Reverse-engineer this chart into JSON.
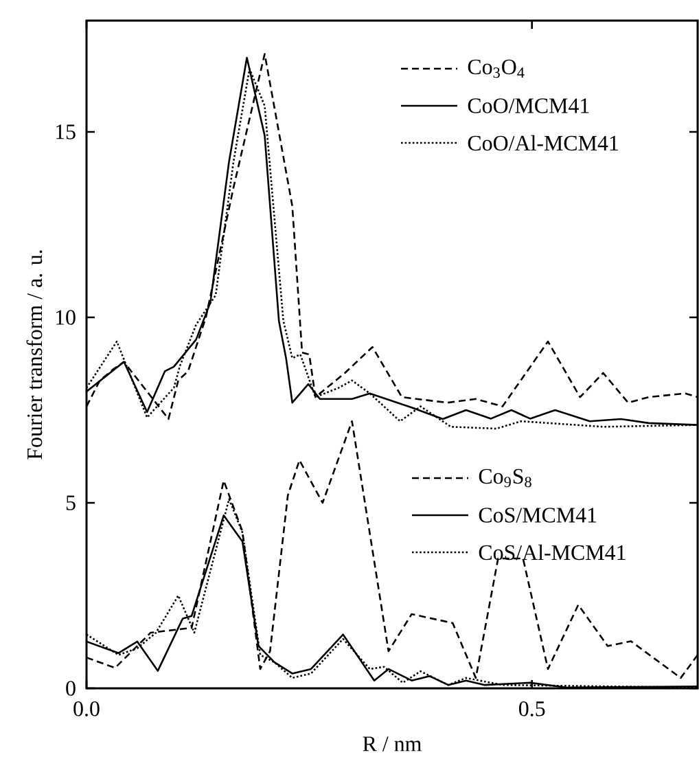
{
  "chart_data": {
    "type": "line",
    "xlabel": "R / nm",
    "ylabel": "Fourier transform / a. u.",
    "xlim": [
      0,
      0.686
    ],
    "ylim": [
      0,
      18
    ],
    "xticks": [
      {
        "value": 0,
        "label": "0.0"
      },
      {
        "value": 0.5,
        "label": "0.5"
      }
    ],
    "yticks": [
      0,
      5,
      10,
      15
    ],
    "legend": "right",
    "marker": "none",
    "series": [
      {
        "name": "Co$_{3}$O$_{4}$",
        "color": "#000000",
        "line_style": "dashed",
        "x": [
          0,
          0.015,
          0.03,
          0.042,
          0.092,
          0.103,
          0.114,
          0.134,
          0.165,
          0.2,
          0.231,
          0.242,
          0.25,
          0.257,
          0.29,
          0.321,
          0.354,
          0.405,
          0.437,
          0.467,
          0.518,
          0.554,
          0.58,
          0.608,
          0.631,
          0.672,
          0.686
        ],
        "values": [
          7.6,
          8.3,
          8.6,
          8.8,
          7.26,
          8.3,
          8.55,
          10.0,
          13.5,
          17.1,
          13.0,
          9.05,
          9.0,
          7.85,
          8.5,
          9.2,
          7.85,
          7.7,
          7.8,
          7.6,
          9.35,
          7.85,
          8.5,
          7.7,
          7.85,
          7.95,
          7.85
        ]
      },
      {
        "name": "CoO/MCM41",
        "color": "#000000",
        "line_style": "solid",
        "x": [
          0,
          0.042,
          0.068,
          0.088,
          0.098,
          0.123,
          0.139,
          0.16,
          0.18,
          0.2,
          0.216,
          0.224,
          0.231,
          0.249,
          0.262,
          0.298,
          0.318,
          0.365,
          0.4,
          0.426,
          0.454,
          0.477,
          0.498,
          0.526,
          0.565,
          0.6,
          0.631,
          0.686
        ],
        "values": [
          8.0,
          8.8,
          7.45,
          8.55,
          8.67,
          9.4,
          10.4,
          14.2,
          17.0,
          14.9,
          9.9,
          8.9,
          7.7,
          8.2,
          7.8,
          7.8,
          7.95,
          7.57,
          7.26,
          7.5,
          7.27,
          7.5,
          7.27,
          7.5,
          7.2,
          7.26,
          7.15,
          7.1
        ]
      },
      {
        "name": "CoO/Al-MCM41",
        "color": "#000000",
        "line_style": "dotted",
        "x": [
          0,
          0.034,
          0.068,
          0.098,
          0.105,
          0.123,
          0.145,
          0.165,
          0.183,
          0.2,
          0.221,
          0.231,
          0.24,
          0.257,
          0.283,
          0.298,
          0.318,
          0.352,
          0.375,
          0.409,
          0.46,
          0.488,
          0.58,
          0.686
        ],
        "values": [
          8.1,
          9.35,
          7.3,
          8.1,
          8.7,
          9.8,
          10.6,
          14.2,
          16.7,
          15.7,
          9.9,
          8.9,
          9.0,
          7.85,
          8.1,
          8.3,
          7.95,
          7.2,
          7.6,
          7.05,
          7.0,
          7.2,
          7.05,
          7.1
        ]
      },
      {
        "name": "Co$_{9}$S$_{8}$",
        "color": "#000000",
        "line_style": "dashed",
        "x": [
          0,
          0.032,
          0.072,
          0.118,
          0.154,
          0.175,
          0.195,
          0.206,
          0.226,
          0.239,
          0.265,
          0.298,
          0.339,
          0.365,
          0.411,
          0.437,
          0.462,
          0.49,
          0.518,
          0.552,
          0.585,
          0.611,
          0.667,
          0.686
        ],
        "values": [
          0.83,
          0.55,
          1.5,
          1.63,
          5.6,
          4.23,
          0.52,
          1.0,
          5.2,
          6.15,
          5.0,
          7.2,
          1.0,
          2.0,
          1.76,
          0.28,
          3.5,
          3.5,
          0.52,
          2.25,
          1.14,
          1.27,
          0.28,
          0.9
        ]
      },
      {
        "name": "CoS/MCM41",
        "color": "#000000",
        "line_style": "solid",
        "x": [
          0,
          0.036,
          0.057,
          0.08,
          0.108,
          0.118,
          0.154,
          0.175,
          0.193,
          0.211,
          0.231,
          0.252,
          0.288,
          0.323,
          0.339,
          0.365,
          0.385,
          0.406,
          0.426,
          0.447,
          0.498,
          0.54,
          0.686
        ],
        "values": [
          1.26,
          0.95,
          1.26,
          0.47,
          1.88,
          1.95,
          4.66,
          3.96,
          1.14,
          0.7,
          0.4,
          0.52,
          1.45,
          0.21,
          0.52,
          0.21,
          0.33,
          0.09,
          0.21,
          0.09,
          0.15,
          0.02,
          0.05
        ]
      },
      {
        "name": "CoS/Al-MCM41",
        "color": "#000000",
        "line_style": "dotted",
        "x": [
          0,
          0.036,
          0.057,
          0.078,
          0.103,
          0.121,
          0.16,
          0.175,
          0.195,
          0.211,
          0.231,
          0.252,
          0.288,
          0.318,
          0.334,
          0.355,
          0.375,
          0.406,
          0.426,
          0.467,
          0.686
        ],
        "values": [
          1.45,
          0.9,
          1.08,
          1.5,
          2.5,
          1.5,
          5.1,
          4.2,
          0.9,
          0.7,
          0.28,
          0.4,
          1.33,
          0.52,
          0.58,
          0.15,
          0.46,
          0.09,
          0.28,
          0.09,
          0.02
        ]
      }
    ]
  }
}
